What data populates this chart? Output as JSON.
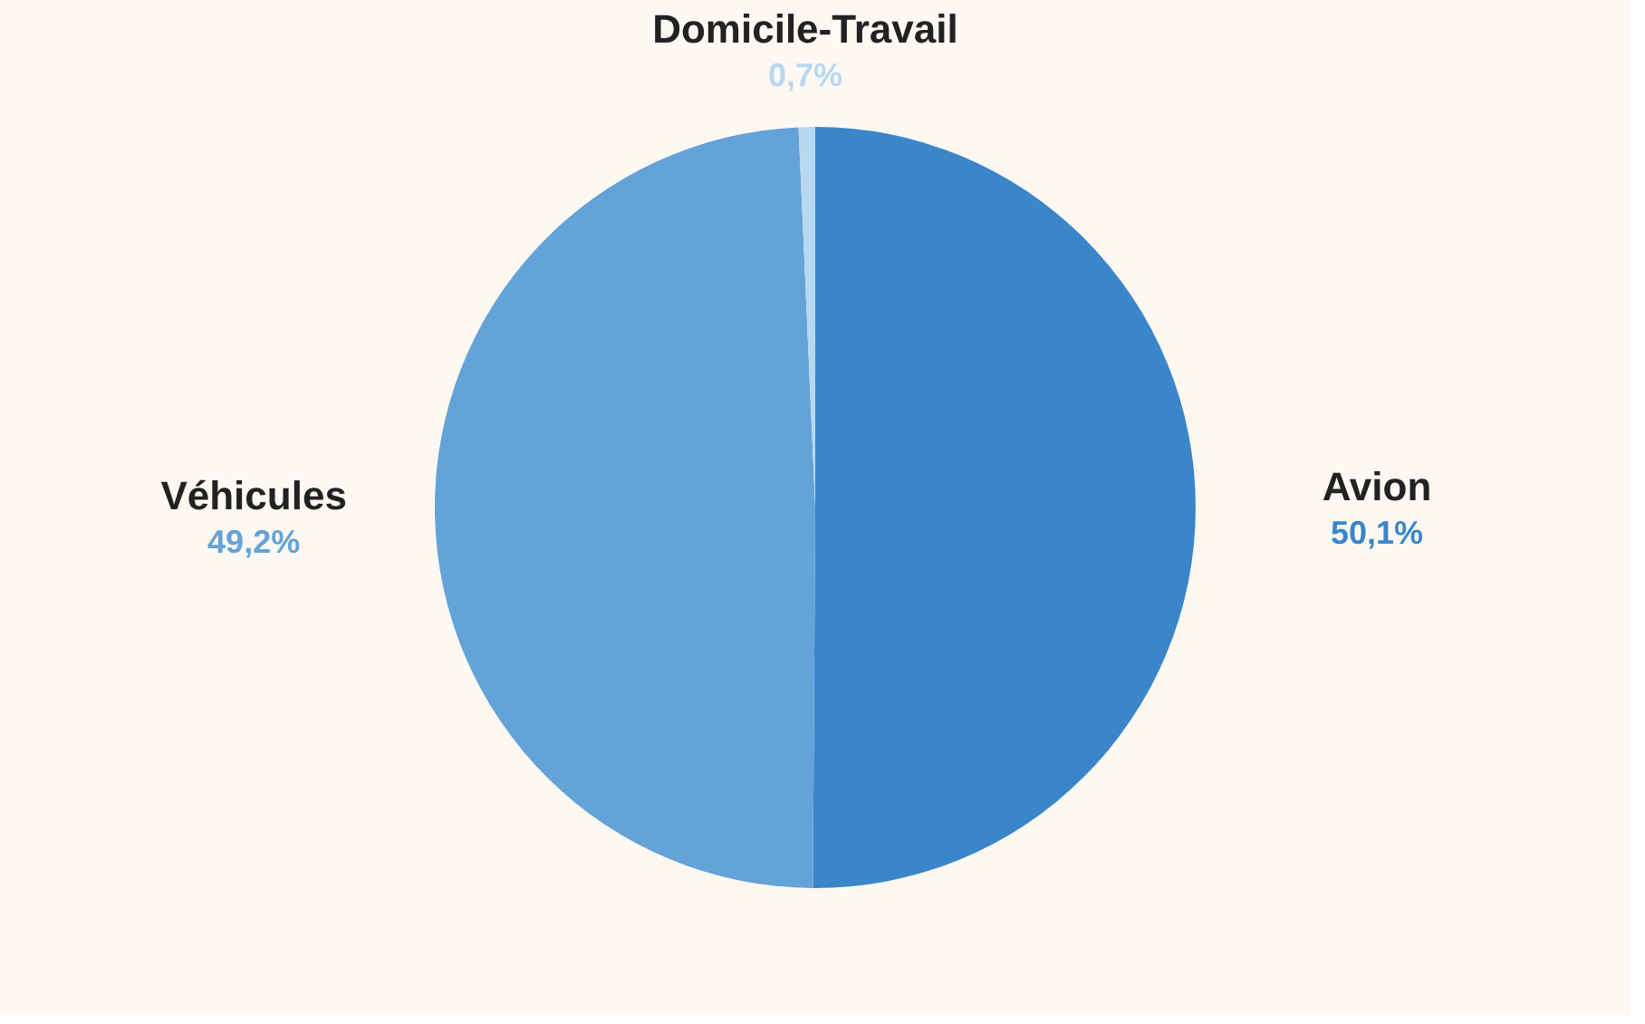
{
  "chart_data": {
    "type": "pie",
    "categories": [
      "Avion",
      "Véhicules",
      "Domicile-Travail"
    ],
    "values": [
      50.1,
      49.2,
      0.7
    ],
    "colors": [
      "#3a86c8",
      "#64a3d8",
      "#b8d8f0"
    ],
    "value_labels": [
      "50,1%",
      "49,2%",
      "0,7%"
    ],
    "legend": false
  }
}
